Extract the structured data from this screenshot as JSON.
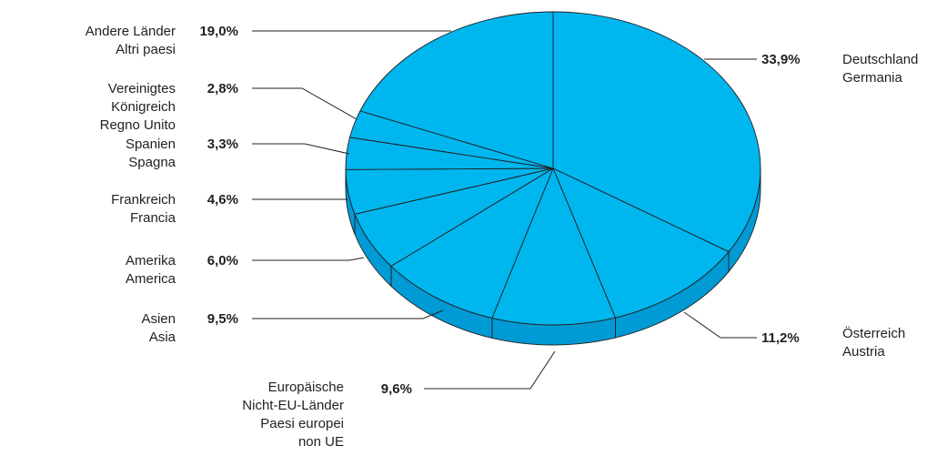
{
  "chart_data": {
    "type": "pie",
    "title": "",
    "colors": {
      "top": "#00b6ef",
      "side": "#009ad4",
      "line": "#231f20"
    },
    "slices": [
      {
        "value": 33.9,
        "pct_label": "33,9%",
        "label_de": "Deutschland",
        "label_it": "Germania"
      },
      {
        "value": 11.2,
        "pct_label": "11,2%",
        "label_de": "Österreich",
        "label_it": "Austria"
      },
      {
        "value": 9.6,
        "pct_label": "9,6%",
        "label_de": "Europäische Nicht-EU-Länder",
        "label_it": "Paesi europei non UE"
      },
      {
        "value": 9.5,
        "pct_label": "9,5%",
        "label_de": "Asien",
        "label_it": "Asia"
      },
      {
        "value": 6.0,
        "pct_label": "6,0%",
        "label_de": "Amerika",
        "label_it": "America"
      },
      {
        "value": 4.6,
        "pct_label": "4,6%",
        "label_de": "Frankreich",
        "label_it": "Francia"
      },
      {
        "value": 3.3,
        "pct_label": "3,3%",
        "label_de": "Spanien",
        "label_it": "Spagna"
      },
      {
        "value": 2.8,
        "pct_label": "2,8%",
        "label_de": "Vereinigtes Königreich",
        "label_it": "Regno Unito"
      },
      {
        "value": 19.0,
        "pct_label": "19,0%",
        "label_de": "Andere Länder",
        "label_it": "Altri paesi"
      }
    ]
  }
}
